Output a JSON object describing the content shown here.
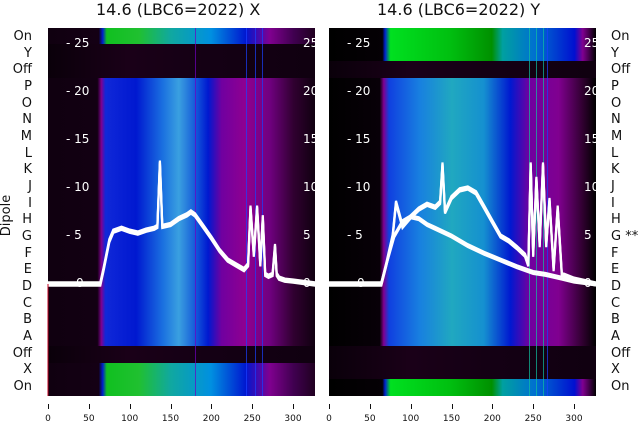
{
  "chart_data": [
    {
      "type": "heatmap",
      "title": "14.6 (LBC6=2022) X",
      "ylabel": "Dipole",
      "row_labels": [
        "On",
        "Y",
        "Off",
        "P",
        "O",
        "N",
        "M",
        "L",
        "K",
        "J",
        "I",
        "H",
        "G",
        "F",
        "E",
        "D",
        "C",
        "B",
        "A",
        "Off",
        "X",
        "On"
      ],
      "x_ticks": [
        0,
        50,
        100,
        150,
        200,
        250,
        300
      ],
      "xlim": [
        0,
        327
      ],
      "overlay_y_ticks": [
        0,
        5,
        10,
        15,
        20,
        25
      ],
      "overlay_ylim": [
        -11,
        27
      ],
      "series": [
        {
          "name": "trace",
          "x": [
            0,
            64,
            68,
            75,
            80,
            90,
            100,
            110,
            120,
            130,
            134,
            137,
            140,
            150,
            160,
            170,
            175,
            180,
            190,
            200,
            210,
            220,
            230,
            240,
            245,
            248,
            252,
            256,
            260,
            263,
            266,
            270,
            275,
            278,
            280,
            283,
            290,
            300,
            327
          ],
          "y": [
            0,
            0,
            1.5,
            4.5,
            5.5,
            5.8,
            5.5,
            5.3,
            5.6,
            5.8,
            6,
            12.7,
            6,
            6.2,
            6.8,
            7.2,
            7.5,
            7.2,
            6,
            4.8,
            3.5,
            2.5,
            2,
            1.5,
            2,
            8,
            3,
            8,
            2,
            7,
            1,
            0.8,
            1,
            4,
            1,
            0.6,
            0.4,
            0.3,
            0
          ]
        }
      ]
    },
    {
      "type": "heatmap",
      "title": "14.6 (LBC6=2022) Y",
      "row_labels": [
        "On",
        "Y",
        "Off",
        "P",
        "O",
        "N",
        "M",
        "L",
        "K",
        "J",
        "I",
        "H",
        "G **",
        "F",
        "E",
        "D",
        "C",
        "B",
        "A",
        "Off",
        "X",
        "On"
      ],
      "x_ticks": [
        0,
        50,
        100,
        150,
        200,
        250,
        300
      ],
      "xlim": [
        0,
        327
      ],
      "overlay_y_ticks": [
        0,
        5,
        10,
        15,
        20,
        25
      ],
      "overlay_ylim": [
        -11,
        27
      ],
      "series": [
        {
          "name": "trace-upper",
          "x": [
            0,
            64,
            70,
            78,
            82,
            90,
            100,
            110,
            120,
            130,
            136,
            139,
            142,
            150,
            160,
            170,
            180,
            190,
            200,
            210,
            220,
            230,
            240,
            244,
            247,
            250,
            254,
            258,
            262,
            266,
            270,
            275,
            280,
            285,
            300,
            327
          ],
          "y": [
            0,
            0,
            2,
            5,
            8.5,
            6,
            7,
            7.8,
            8.3,
            8,
            8.5,
            12.5,
            7.5,
            9,
            9.8,
            10,
            9.5,
            8,
            6.5,
            5,
            4.5,
            3.8,
            3,
            2,
            12.5,
            3,
            11,
            4,
            12.5,
            4,
            8.8,
            1.5,
            8,
            1,
            0.5,
            0
          ]
        },
        {
          "name": "trace-lower",
          "x": [
            0,
            64,
            70,
            80,
            90,
            100,
            110,
            120,
            130,
            150,
            170,
            190,
            210,
            230,
            250,
            265,
            285,
            300,
            327
          ],
          "y": [
            0,
            0,
            2,
            5,
            6.5,
            7,
            6.8,
            6.2,
            5.8,
            5,
            4,
            3.2,
            2.5,
            1.8,
            1.2,
            1,
            0.6,
            0.3,
            0
          ]
        }
      ]
    }
  ]
}
